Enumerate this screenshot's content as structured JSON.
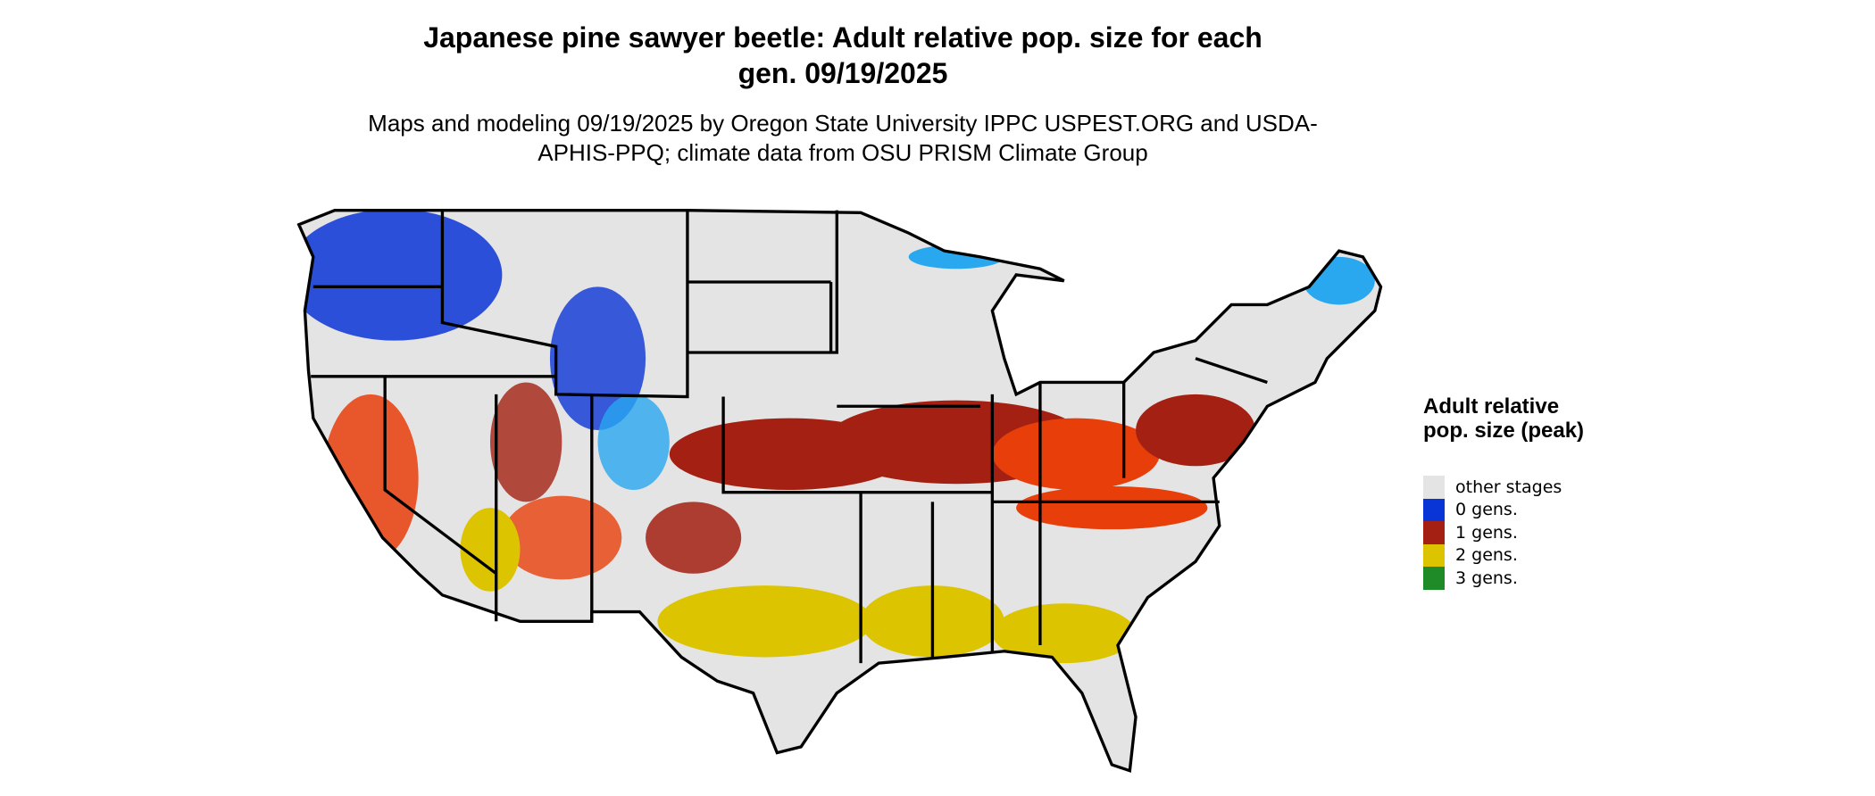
{
  "title": "Japanese pine sawyer beetle: Adult relative pop. size for each gen. 09/19/2025",
  "subtitle": "Maps and modeling 09/19/2025 by Oregon State University IPPC USPEST.ORG and USDA-APHIS-PPQ; climate data from OSU PRISM Climate Group",
  "legend": {
    "title": "Adult relative pop. size (peak)",
    "items": [
      {
        "label": "other stages",
        "color": "#e4e4e4"
      },
      {
        "label": "0 gens.",
        "color": "#0a35d6"
      },
      {
        "label": "1 gens.",
        "color": "#a32012"
      },
      {
        "label": "2 gens.",
        "color": "#dcc400"
      },
      {
        "label": "3 gens.",
        "color": "#1e8a28"
      }
    ]
  }
}
